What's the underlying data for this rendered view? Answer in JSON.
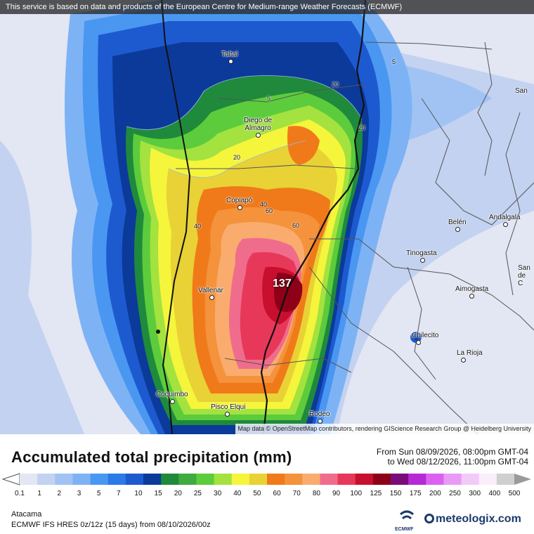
{
  "banner": "This service is based on data and products of the European Centre for Medium-range Weather Forecasts (ECMWF)",
  "attribution": "Map data © OpenStreetMap contributors, rendering GIScience Research Group @ Heidelberg University",
  "cities": [
    {
      "name": "Taltal"
    },
    {
      "name": "Diego de"
    },
    {
      "name": "Almagro"
    },
    {
      "name": "Copiapó"
    },
    {
      "name": "Vallenar"
    },
    {
      "name": "Coquimbo"
    },
    {
      "name": "Pisco Elqui"
    },
    {
      "name": "Rodeo"
    },
    {
      "name": "Belén"
    },
    {
      "name": "Andalgalá"
    },
    {
      "name": "Tinogasta"
    },
    {
      "name": "Aimogasta"
    },
    {
      "name": "Chilecito"
    },
    {
      "name": "La Rioja"
    },
    {
      "name": "San"
    },
    {
      "name": "San"
    },
    {
      "name": "de"
    },
    {
      "name": "C"
    }
  ],
  "contour_labels": [
    "5",
    "5",
    "20",
    "20",
    "20",
    "40",
    "40",
    "60",
    "60",
    "5"
  ],
  "max_label": "137",
  "title": "Accumulated total precipitation (mm)",
  "period_from": "From Sun 08/09/2026, 08:00pm GMT-04",
  "period_to": "to Wed 08/12/2026, 11:00pm GMT-04",
  "legend": {
    "ticks": [
      "0.1",
      "1",
      "2",
      "3",
      "5",
      "7",
      "10",
      "15",
      "20",
      "25",
      "30",
      "40",
      "50",
      "60",
      "70",
      "80",
      "90",
      "100",
      "125",
      "150",
      "175",
      "200",
      "250",
      "300",
      "400",
      "500"
    ],
    "colors": [
      "#e3e6f3",
      "#c3d2f0",
      "#a1c3f3",
      "#7db3f5",
      "#4a97f2",
      "#2a7ae8",
      "#1d5ad0",
      "#0b3a9a",
      "#1f8a3c",
      "#3eaa3f",
      "#5ccc3c",
      "#a3e23f",
      "#f5f53c",
      "#e8d235",
      "#f07a1a",
      "#f5923c",
      "#f9ac6e",
      "#f06c8c",
      "#e8385a",
      "#c8102e",
      "#8e0018",
      "#7a0c7a",
      "#b62ad6",
      "#db62f0",
      "#e89af5",
      "#f2caf8",
      "#faeefb",
      "#cfcfcf"
    ]
  },
  "region": "Atacama",
  "model": "ECMWF IFS HRES 0z/12z (15 days)  from  08/10/2026/00z",
  "logo_ecmwf": "ECMWF",
  "logo_meteologix": "meteologix.com"
}
